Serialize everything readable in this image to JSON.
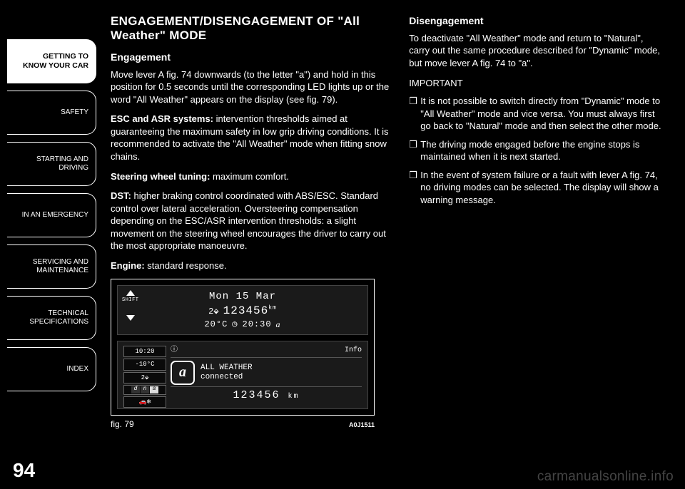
{
  "sidebar": {
    "tabs": [
      {
        "label": "GETTING TO\nKNOW YOUR CAR",
        "active": true
      },
      {
        "label": "SAFETY",
        "active": false
      },
      {
        "label": "STARTING AND\nDRIVING",
        "active": false
      },
      {
        "label": "IN AN EMERGENCY",
        "active": false
      },
      {
        "label": "SERVICING AND\nMAINTENANCE",
        "active": false
      },
      {
        "label": "TECHNICAL\nSPECIFICATIONS",
        "active": false
      },
      {
        "label": "INDEX",
        "active": false
      }
    ]
  },
  "page_number": "94",
  "left": {
    "title": "ENGAGEMENT/DISENGAGEMENT OF \"All Weather\" MODE",
    "h_engagement": "Engagement",
    "p1": "Move lever A fig. 74 downwards (to the letter \"a\") and hold in this position for 0.5 seconds until the corresponding LED lights up or the word \"All Weather\" appears on the display (see fig. 79).",
    "p2_bold": "ESC and ASR systems:",
    "p2": " intervention thresholds aimed at guaranteeing the maximum safety in low grip driving conditions. It is recommended to activate the \"All Weather\" mode when fitting snow chains.",
    "p3_bold": "Steering wheel tuning:",
    "p3": " maximum comfort.",
    "p4_bold": "DST:",
    "p4": " higher braking control coordinated with ABS/ESC. Standard control over lateral acceleration. Oversteering compensation depending on the ESC/ASR intervention thresholds: a slight movement on the steering wheel encourages the driver to carry out the most appropriate manoeuvre.",
    "p5_bold": "Engine:",
    "p5": " standard response."
  },
  "right": {
    "h_disengagement": "Disengagement",
    "p1": "To deactivate \"All Weather\" mode and return to \"Natural\", carry out the same procedure described for \"Dynamic\" mode, but move lever A fig. 74 to \"a\".",
    "important": "IMPORTANT",
    "b1": "It is not possible to switch directly from \"Dynamic\" mode to \"All Weather\" mode and vice versa. You must always first go back to \"Natural\" mode and then select the other mode.",
    "b2": "The driving mode engaged before the engine stops is maintained when it is next started.",
    "b3": "In the event of system failure or a fault with lever A fig. 74, no driving modes can be selected. The display will show a warning message."
  },
  "figure": {
    "top": {
      "date": "Mon 15 Mar",
      "gear": "2",
      "odo": "123456",
      "odo_unit": "km",
      "temp": "20°C",
      "clock": "20:30",
      "mode_glyph": "a",
      "shift": "SHIFT"
    },
    "bottom": {
      "header_left_icon": "ⓘ",
      "header_right": "Info",
      "time": "10:20",
      "temp": "-10°C",
      "gear": "2",
      "dna": "dna",
      "mode_glyph": "a",
      "mode_line1": "ALL WEATHER",
      "mode_line2": "connected",
      "odo": "123456",
      "odo_unit": "km"
    },
    "caption": "fig. 79",
    "code": "A0J1511"
  },
  "watermark": "carmanualsonline.info"
}
